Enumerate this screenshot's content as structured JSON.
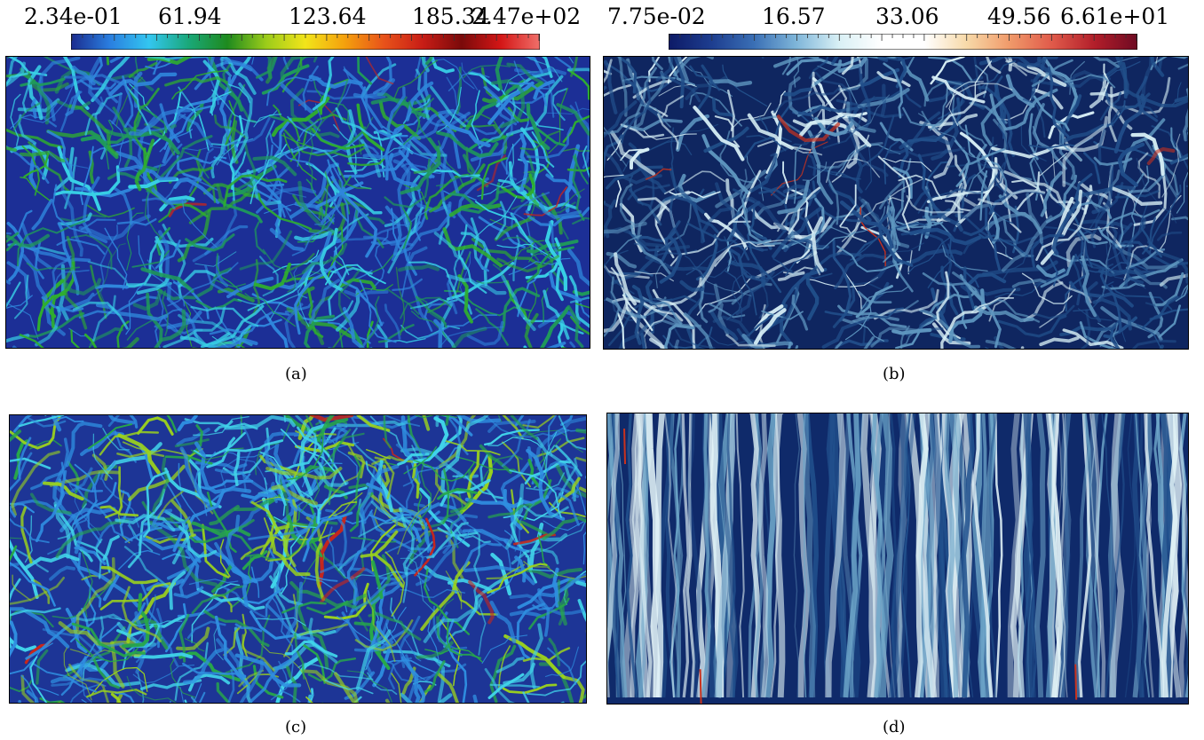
{
  "colorbar_left": {
    "ticks": [
      "2.34e-01",
      "61.94",
      "123.64",
      "185.34",
      "2.47e+02"
    ],
    "colormap": "rainbow",
    "colors": [
      "#1b2c8f",
      "#2a7fe0",
      "#33c6f0",
      "#1aa87a",
      "#1e8a1e",
      "#9ccc1a",
      "#f2e41a",
      "#f5a10d",
      "#e8531a",
      "#c81d16",
      "#7a0a0a",
      "#d41616",
      "#f0706a"
    ]
  },
  "colorbar_right": {
    "ticks": [
      "7.75e-02",
      "16.57",
      "33.06",
      "49.56",
      "6.61e+01"
    ],
    "colormap": "blue-white-red",
    "colors": [
      "#0d1a66",
      "#1d3d8f",
      "#3a6fb5",
      "#7fb6d9",
      "#d9f0f5",
      "#ffffff",
      "#ffffff",
      "#f7d9a8",
      "#f09a6a",
      "#e05a4a",
      "#b21e2a",
      "#6e0a22"
    ]
  },
  "panels": [
    {
      "caption": "(a)",
      "style": "rainbow-turbulence",
      "colors": [
        "#1c2f96",
        "#2f86dc",
        "#38d0e6",
        "#1f9a5a",
        "#2fae2f",
        "#c8261b"
      ]
    },
    {
      "caption": "(b)",
      "style": "blue-white-turbulence",
      "colors": [
        "#0f2660",
        "#214f8a",
        "#5e96bf",
        "#d6eef5",
        "#c8321e"
      ]
    },
    {
      "caption": "(c)",
      "style": "rainbow-turbulence",
      "colors": [
        "#1d3596",
        "#2f8ee0",
        "#41d4ea",
        "#27a84a",
        "#9bd21d",
        "#c8261b"
      ]
    },
    {
      "caption": "(d)",
      "style": "vertical-streaks",
      "colors": [
        "#0f2a6a",
        "#23538f",
        "#6ea6c9",
        "#e2f3f7",
        "#c8321e"
      ]
    }
  ]
}
